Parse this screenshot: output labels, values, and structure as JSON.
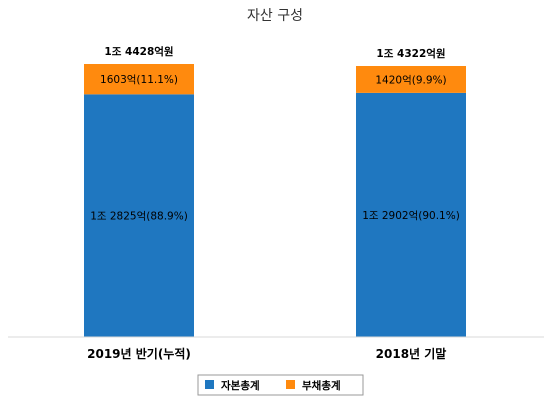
{
  "chart_data": {
    "type": "bar",
    "stacked": true,
    "title": "자산 구성",
    "categories": [
      "2019년 반기(누적)",
      "2018년 기말"
    ],
    "totals": [
      "1조 4428억원",
      "1조 4322억원"
    ],
    "series": [
      {
        "name": "자본총계",
        "color": "#1f77c0",
        "values": [
          12825,
          12902
        ],
        "labels": [
          "1조 2825억(88.9%)",
          "1조 2902억(90.1%)"
        ]
      },
      {
        "name": "부채총계",
        "color": "#ff8a0e",
        "values": [
          1603,
          1420
        ],
        "labels": [
          "1603억(11.1%)",
          "1420억(9.9%)"
        ]
      }
    ],
    "unit": "억원",
    "ylim": [
      0,
      14428
    ],
    "grid": false,
    "legend_position": "bottom"
  }
}
